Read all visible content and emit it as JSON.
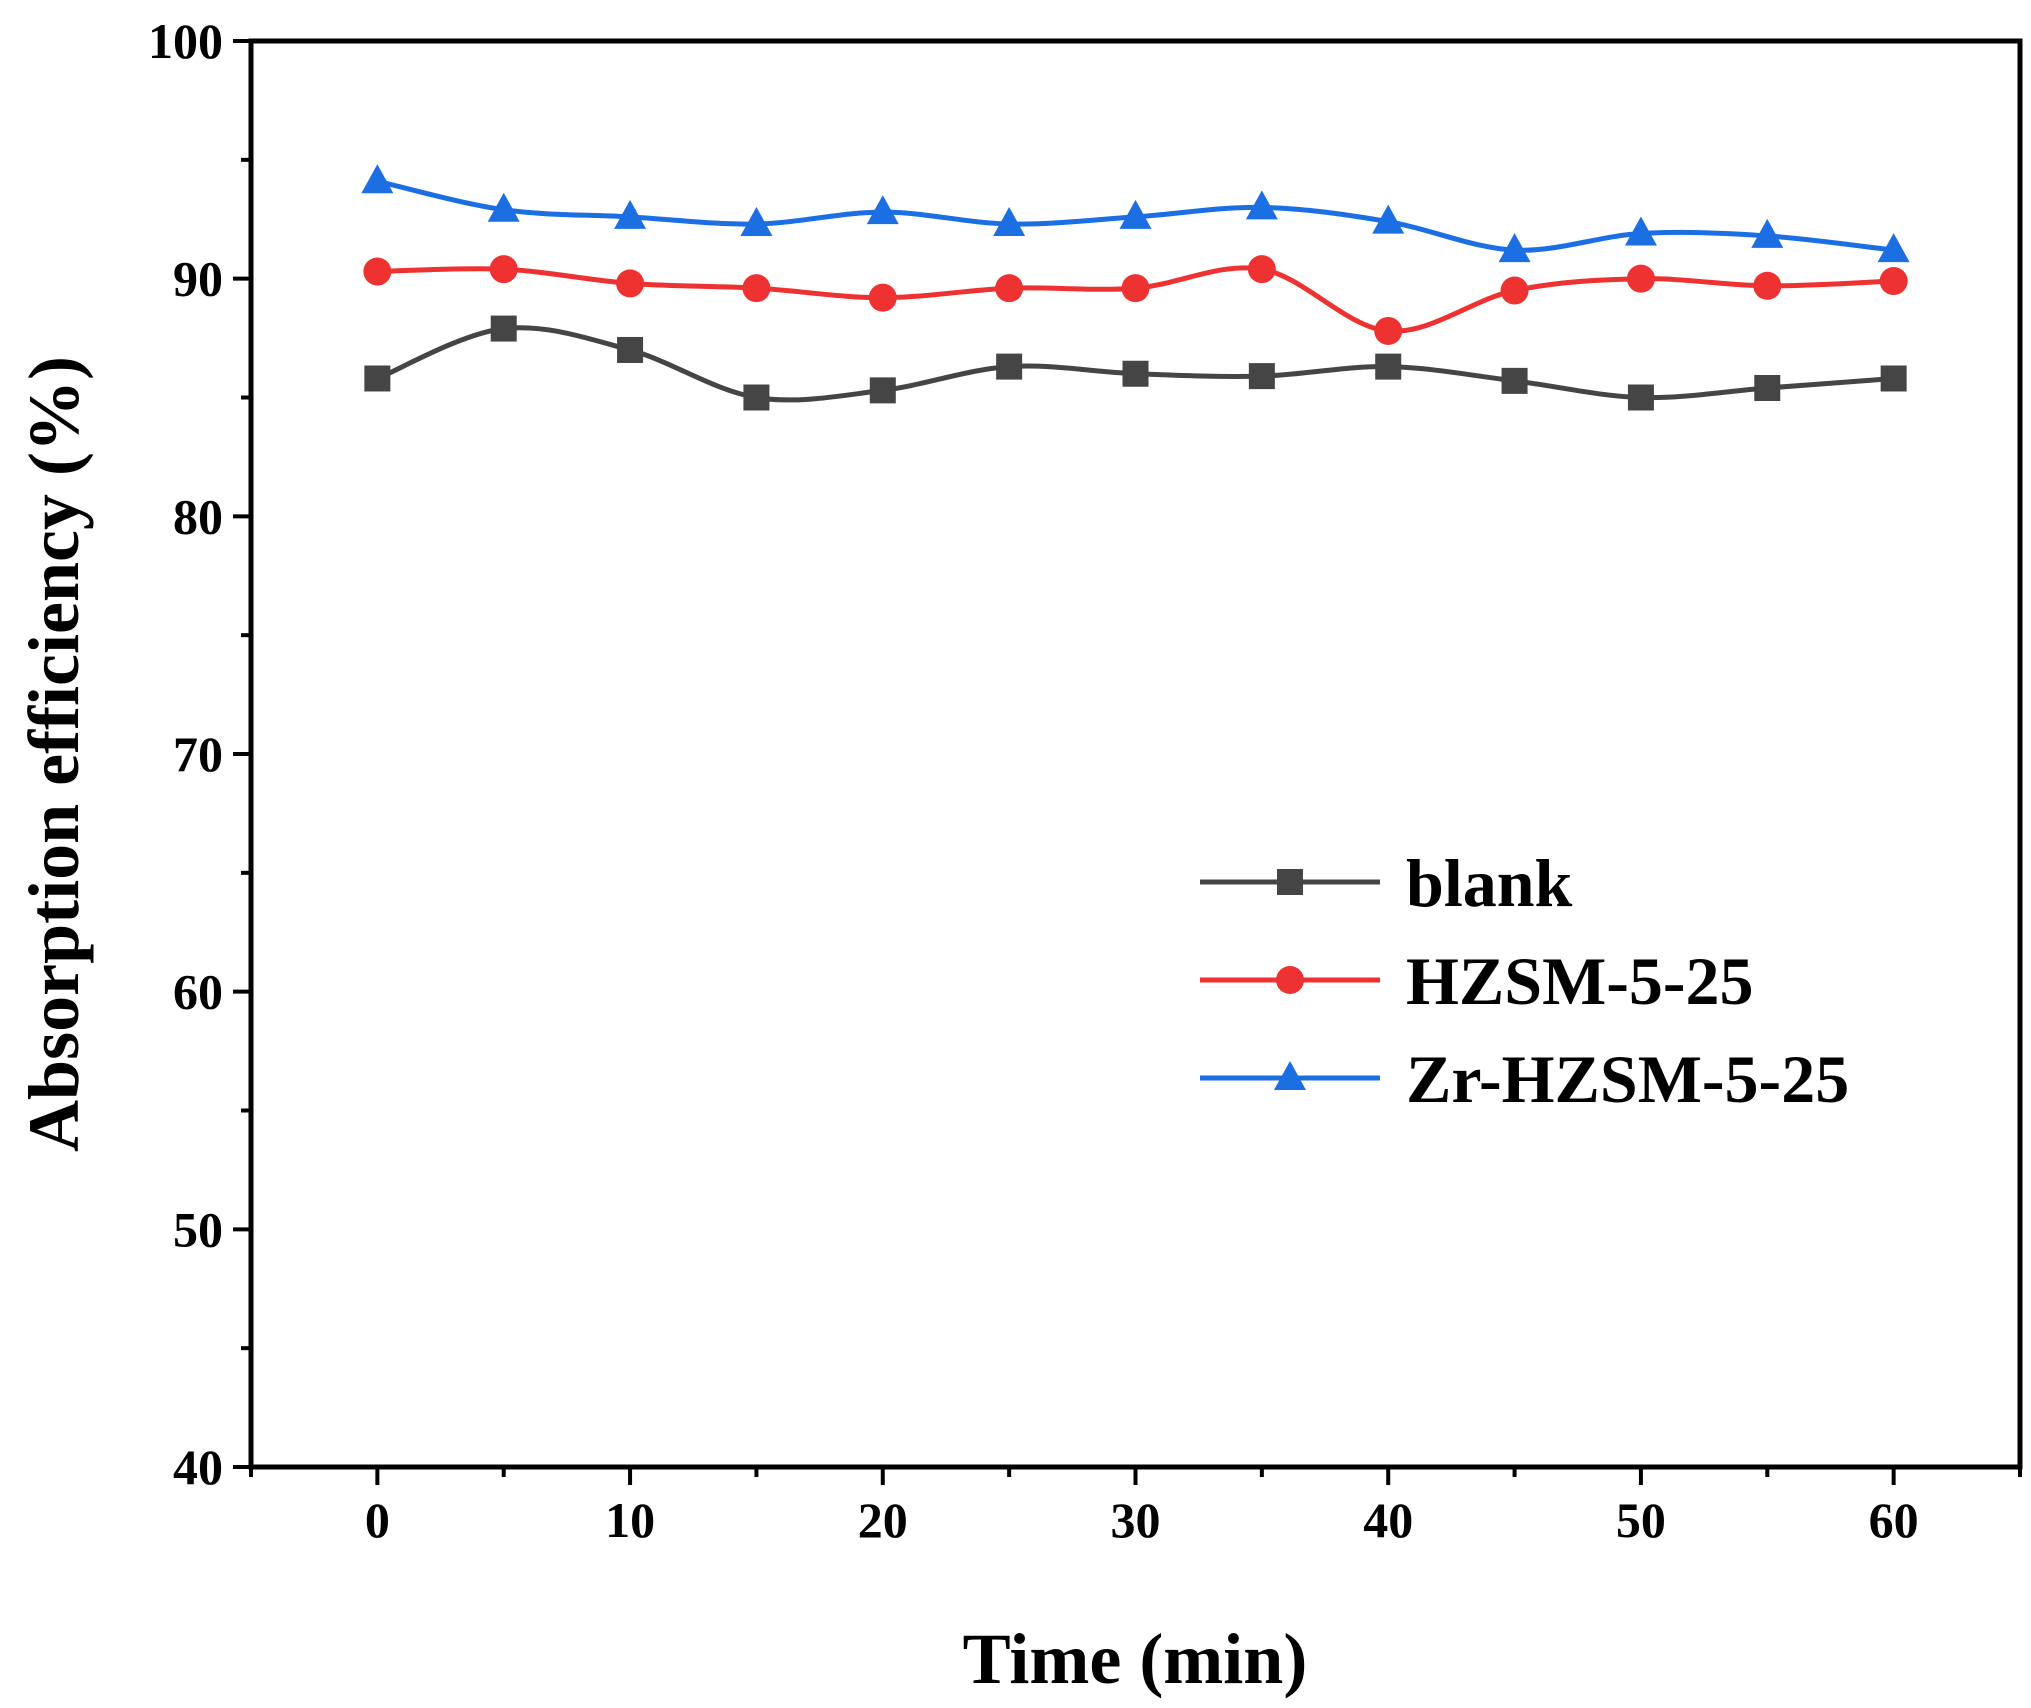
{
  "chart_data": {
    "type": "line",
    "xlabel": "Time (min)",
    "ylabel": "Absorption efficiency (%)",
    "xlim": [
      -5,
      65
    ],
    "ylim": [
      40,
      100
    ],
    "x_ticks": [
      0,
      10,
      20,
      30,
      40,
      50,
      60
    ],
    "x_tick_labels": [
      "0",
      "10",
      "20",
      "30",
      "40",
      "50",
      "60"
    ],
    "x_minor_ticks": [
      -5,
      5,
      15,
      25,
      35,
      45,
      55,
      65
    ],
    "y_ticks": [
      40,
      50,
      60,
      70,
      80,
      90,
      100
    ],
    "y_tick_labels": [
      "40",
      "50",
      "60",
      "70",
      "80",
      "90",
      "100"
    ],
    "y_minor_ticks": [
      45,
      55,
      65,
      75,
      85,
      95
    ],
    "grid": false,
    "legend_position": "center-right",
    "x": [
      0,
      5,
      10,
      15,
      20,
      25,
      30,
      35,
      40,
      45,
      50,
      55,
      60
    ],
    "series": [
      {
        "name": "blank",
        "color": "#454545",
        "marker": "square",
        "values": [
          85.8,
          87.9,
          87.0,
          85.0,
          85.3,
          86.3,
          86.0,
          85.9,
          86.3,
          85.7,
          85.0,
          85.4,
          85.8
        ]
      },
      {
        "name": "HZSM-5-25",
        "color": "#ee3131",
        "marker": "circle",
        "values": [
          90.3,
          90.4,
          89.8,
          89.6,
          89.2,
          89.6,
          89.6,
          90.4,
          87.8,
          89.5,
          90.0,
          89.7,
          89.9
        ]
      },
      {
        "name": "Zr-HZSM-5-25",
        "color": "#1b6fe3",
        "marker": "triangle",
        "values": [
          94.1,
          92.9,
          92.6,
          92.3,
          92.8,
          92.3,
          92.6,
          93.0,
          92.4,
          91.2,
          91.9,
          91.8,
          91.2
        ]
      }
    ]
  }
}
